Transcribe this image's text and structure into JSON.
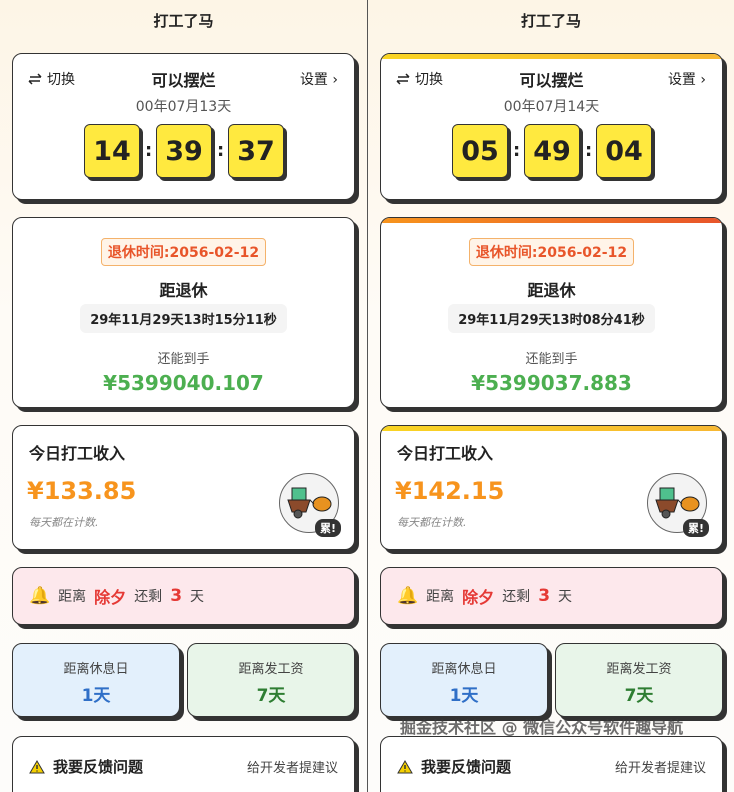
{
  "panels": [
    {
      "app_title": "打工了马",
      "switch_label": "切换",
      "mode_title": "可以摆烂",
      "settings_label": "设置",
      "date_text": "00年07月13天",
      "time": [
        "14",
        "39",
        "37"
      ],
      "retire_badge": "退休时间:2056-02-12",
      "retire_label": "距退休",
      "retire_countdown": "29年11月29天13时15分11秒",
      "earn_label": "还能到手",
      "earn_amount": "¥5399040.107",
      "today_title": "今日打工收入",
      "today_amount": "¥133.85",
      "today_caption": "每天都在计数.",
      "tired_badge": "累!",
      "holiday": {
        "prefix": "距离",
        "name": "除夕",
        "mid": "还剩",
        "days": "3",
        "suffix": "天"
      },
      "rest": {
        "label": "距离休息日",
        "value": "1天"
      },
      "pay": {
        "label": "距离发工资",
        "value": "7天"
      },
      "feedback": {
        "title": "我要反馈问题",
        "hint": "给开发者提建议"
      },
      "accent_bars": false
    },
    {
      "app_title": "打工了马",
      "switch_label": "切换",
      "mode_title": "可以摆烂",
      "settings_label": "设置",
      "date_text": "00年07月14天",
      "time": [
        "05",
        "49",
        "04"
      ],
      "retire_badge": "退休时间:2056-02-12",
      "retire_label": "距退休",
      "retire_countdown": "29年11月29天13时08分41秒",
      "earn_label": "还能到手",
      "earn_amount": "¥5399037.883",
      "today_title": "今日打工收入",
      "today_amount": "¥142.15",
      "today_caption": "每天都在计数.",
      "tired_badge": "累!",
      "holiday": {
        "prefix": "距离",
        "name": "除夕",
        "mid": "还剩",
        "days": "3",
        "suffix": "天"
      },
      "rest": {
        "label": "距离休息日",
        "value": "1天"
      },
      "pay": {
        "label": "距离发工资",
        "value": "7天"
      },
      "feedback": {
        "title": "我要反馈问题",
        "hint": "给开发者提建议"
      },
      "accent_bars": true
    }
  ],
  "watermark": "掘金技术社区 @ 微信公众号软件趣导航",
  "colors": {
    "digit": "#ffe93f",
    "earn": "#4caf50",
    "today": "#f7941d",
    "holiday": "#e53935",
    "rest": "#2f6fc7",
    "pay": "#2e7d32"
  }
}
